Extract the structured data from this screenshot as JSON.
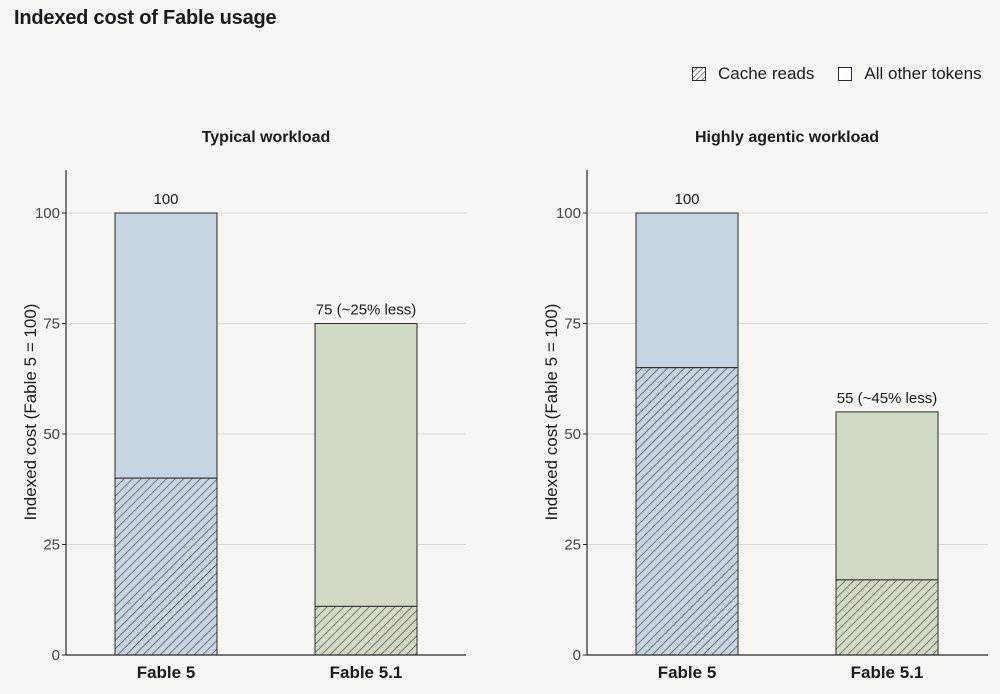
{
  "page": {
    "title": "Indexed cost of Fable usage"
  },
  "legend": [
    {
      "label": "Cache reads",
      "pattern": "hatched"
    },
    {
      "label": "All other tokens",
      "pattern": "solid"
    }
  ],
  "colors": {
    "fable5_fill": "#c6d4e3",
    "fable51_fill": "#d0dac4",
    "outline": "#2a2a2a",
    "grid": "#d9d9d6",
    "background": "#f7f6f2"
  },
  "chart_data": [
    {
      "type": "bar",
      "stacked": true,
      "title": "Typical workload",
      "ylabel": "Indexed cost (Fable 5 = 100)",
      "ylim": [
        0,
        110
      ],
      "yticks": [
        0,
        25,
        50,
        75,
        100
      ],
      "grid": true,
      "categories": [
        "Fable 5",
        "Fable 5.1"
      ],
      "series": [
        {
          "name": "Cache reads",
          "values": [
            40,
            11
          ]
        },
        {
          "name": "All other tokens",
          "values": [
            60,
            64
          ]
        }
      ],
      "totals": [
        100,
        75
      ],
      "data_labels": [
        "100",
        "75 (~25% less)"
      ]
    },
    {
      "type": "bar",
      "stacked": true,
      "title": "Highly agentic workload",
      "ylabel": "Indexed cost (Fable 5 = 100)",
      "ylim": [
        0,
        110
      ],
      "yticks": [
        0,
        25,
        50,
        75,
        100
      ],
      "grid": true,
      "categories": [
        "Fable 5",
        "Fable 5.1"
      ],
      "series": [
        {
          "name": "Cache reads",
          "values": [
            65,
            17
          ]
        },
        {
          "name": "All other tokens",
          "values": [
            35,
            38
          ]
        }
      ],
      "totals": [
        100,
        55
      ],
      "data_labels": [
        "100",
        "55 (~45% less)"
      ]
    }
  ]
}
